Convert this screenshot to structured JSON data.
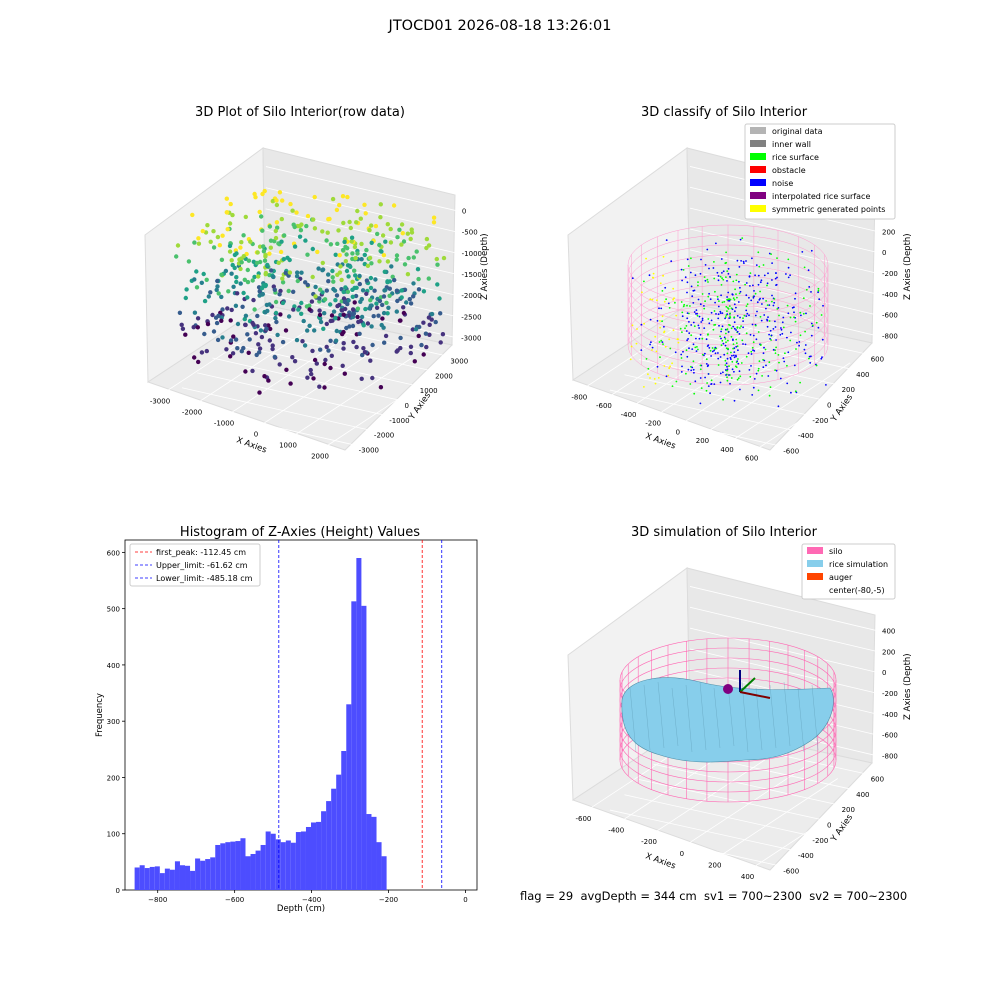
{
  "suptitle": "JTOCD01 2026-08-18 13:26:01",
  "footer": "flag = 29  avgDepth = 344 cm  sv1 = 700~2300  sv2 = 700~2300",
  "colors": {
    "silo": "#ff69b4",
    "rice_simulation": "#87ceeb",
    "auger": "#ff4500",
    "hist_bar": "#4d4dff",
    "first_peak": "#ff0000",
    "limits": "#0000ff"
  },
  "chart_data": [
    {
      "type": "scatter",
      "title": "3D Plot of Silo Interior(row data)",
      "xlabel": "X Axies",
      "ylabel": "Y Axies",
      "zlabel": "Z Axies (Depth)",
      "x_ticks": [
        "-3000",
        "-2000",
        "-1000",
        "0",
        "1000",
        "2000"
      ],
      "y_ticks": [
        "-3000",
        "-2000",
        "-1000",
        "0",
        "1000",
        "2000",
        "3000"
      ],
      "z_ticks": [
        "-3000",
        "-2500",
        "-2000",
        "-1500",
        "-1000",
        "-500",
        "0"
      ],
      "colormap": "viridis",
      "grid": true
    },
    {
      "type": "scatter",
      "title": "3D classify of Silo Interior",
      "xlabel": "X Axies",
      "ylabel": "Y Axies",
      "zlabel": "Z Axies (Depth)",
      "x_ticks": [
        "-800",
        "-600",
        "-400",
        "-200",
        "0",
        "200",
        "400",
        "600"
      ],
      "y_ticks": [
        "-600",
        "-400",
        "-200",
        "0",
        "200",
        "400",
        "600"
      ],
      "z_ticks": [
        "-800",
        "-600",
        "-400",
        "-200",
        "0",
        "200",
        "400"
      ],
      "legend": [
        {
          "label": "original data",
          "color": "#b4b4b4"
        },
        {
          "label": "inner wall",
          "color": "#808080"
        },
        {
          "label": "rice surface",
          "color": "#00ff00"
        },
        {
          "label": "obstacle",
          "color": "#ff0000"
        },
        {
          "label": "noise",
          "color": "#0000ff"
        },
        {
          "label": "interpolated rice surface",
          "color": "#800080"
        },
        {
          "label": "symmetric generated points",
          "color": "#ffff00"
        }
      ],
      "legend_position": "top-right",
      "grid": true
    },
    {
      "type": "bar",
      "title": "Histogram of Z-Axies (Height) Values",
      "xlabel": "Depth (cm)",
      "ylabel": "Frequency",
      "xlim": [
        -885,
        30
      ],
      "ylim": [
        0,
        622
      ],
      "x_ticks": [
        -800,
        -600,
        -400,
        -200,
        0
      ],
      "y_ticks": [
        0,
        100,
        200,
        300,
        400,
        500,
        600
      ],
      "bin_start": -860,
      "bin_width": 13.1,
      "values": [
        40,
        44,
        39,
        41,
        42,
        30,
        38,
        36,
        51,
        44,
        43,
        34,
        56,
        52,
        55,
        58,
        80,
        83,
        85,
        86,
        87,
        92,
        60,
        64,
        70,
        80,
        104,
        100,
        90,
        85,
        88,
        84,
        103,
        104,
        112,
        120,
        121,
        140,
        158,
        180,
        205,
        247,
        330,
        513,
        590,
        505,
        135,
        130,
        85,
        60
      ],
      "vlines": [
        {
          "label": "first_peak: -112.45 cm",
          "x": -112.45,
          "color": "#ff0000"
        },
        {
          "label": "Upper_limit: -61.62 cm",
          "x": -61.62,
          "color": "#0000ff"
        },
        {
          "label": "Lower_limit: -485.18 cm",
          "x": -485.18,
          "color": "#0000ff"
        }
      ],
      "legend_position": "top-left"
    },
    {
      "type": "surface",
      "title": "3D simulation of Silo Interior",
      "xlabel": "X Axies",
      "ylabel": "Y Axies",
      "zlabel": "Z Axies (Depth)",
      "x_ticks": [
        "-600",
        "-400",
        "-200",
        "0",
        "200",
        "400"
      ],
      "y_ticks": [
        "-600",
        "-400",
        "-200",
        "0",
        "200",
        "400",
        "600"
      ],
      "z_ticks": [
        "-800",
        "-600",
        "-400",
        "-200",
        "0",
        "200",
        "400"
      ],
      "legend": [
        {
          "label": "silo",
          "color": "#ff69b4"
        },
        {
          "label": "rice simulation",
          "color": "#87ceeb"
        },
        {
          "label": "auger",
          "color": "#ff4500"
        },
        {
          "label": "center(-80,-5)",
          "color": "#ffffff"
        }
      ],
      "legend_position": "top-right",
      "grid": true
    }
  ]
}
